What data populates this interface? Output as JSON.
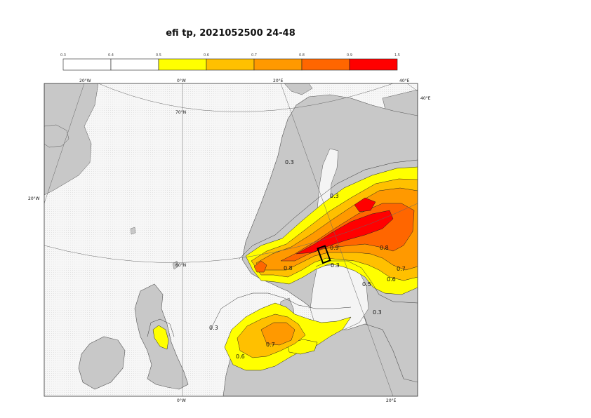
{
  "title": "efi tp, 2021052500 24-48",
  "legend": {
    "ticks": [
      "0.3",
      "0.4",
      "0.5",
      "0.6",
      "0.7",
      "0.8",
      "0.9",
      "1.5"
    ],
    "bins": [
      {
        "from": 0.3,
        "to": 0.4,
        "color": "#ffffff"
      },
      {
        "from": 0.4,
        "to": 0.5,
        "color": "#ffffff"
      },
      {
        "from": 0.5,
        "to": 0.6,
        "color": "#ffff00"
      },
      {
        "from": 0.6,
        "to": 0.7,
        "color": "#ffc000"
      },
      {
        "from": 0.7,
        "to": 0.8,
        "color": "#ff9900"
      },
      {
        "from": 0.8,
        "to": 0.9,
        "color": "#ff6600"
      },
      {
        "from": 0.9,
        "to": 1.5,
        "color": "#ff0000"
      }
    ]
  },
  "grid_labels": {
    "lon_w20_top": "20°W",
    "lon_0_top": "0°W",
    "lon_e20_top": "20°E",
    "lon_e40_top": "40°E",
    "lon_e40_right": "40°E",
    "lon_w20_left": "20°W",
    "lat_70": "70°N",
    "lat_60": "60°N",
    "lon_0_bottom": "0°W",
    "lon_e20_bottom": "20°E"
  },
  "contour_labels": {
    "a": "0.3",
    "b": "0.3",
    "c": "0.9",
    "d": "0.8",
    "e": "0.7",
    "f": "0.6",
    "g": "0.3",
    "h": "0.8",
    "i": "0.5",
    "j": "0.3",
    "k": "0.7",
    "l": "0.6",
    "m": "0.3"
  },
  "colors": {
    "land": "#c8c8c8",
    "sea": "#f4f4f4",
    "c05": "#ffff00",
    "c06": "#ffc000",
    "c07": "#ff9900",
    "c08": "#ff6600",
    "c09": "#ff0000"
  }
}
